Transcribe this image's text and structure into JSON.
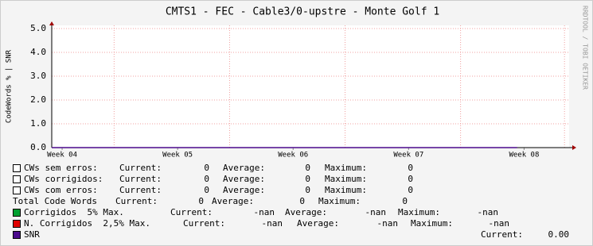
{
  "chart_data": {
    "type": "line",
    "title": "CMTS1 - FEC - Cable3/0-upstre - Monte Golf 1",
    "y_label": "CodeWords % | SNR",
    "side_text": "RRDTOOL / TOBI OETIKER",
    "xlim": [
      3.91,
      8.39
    ],
    "xticks": [
      {
        "value": 4,
        "label": "Week 04"
      },
      {
        "value": 5,
        "label": "Week 05"
      },
      {
        "value": 6,
        "label": "Week 06"
      },
      {
        "value": 7,
        "label": "Week 07"
      },
      {
        "value": 8,
        "label": "Week 08"
      }
    ],
    "xgrid": [
      4.45,
      5.45,
      6.45,
      7.45,
      8.35
    ],
    "ylim": [
      0,
      5
    ],
    "yticks": [
      {
        "value": 0,
        "label": "0.0"
      },
      {
        "value": 1,
        "label": "1.0"
      },
      {
        "value": 2,
        "label": "2.0"
      },
      {
        "value": 3,
        "label": "3.0"
      },
      {
        "value": 4,
        "label": "4.0"
      },
      {
        "value": 5,
        "label": "5.0"
      }
    ],
    "grid": true,
    "series": [
      {
        "name": "SNR",
        "color": "#4b0a8c",
        "x": [
          3.91,
          7.94
        ],
        "values": [
          0,
          0
        ]
      }
    ],
    "legend": [
      {
        "label": "CWs sem erros:",
        "color": "#ffffff",
        "stats": [
          [
            "Current:",
            "0"
          ],
          [
            "Average:",
            "0"
          ],
          [
            "Maximum:",
            "0"
          ]
        ]
      },
      {
        "label": "CWs corrigidos:",
        "color": "#ffffff",
        "stats": [
          [
            "Current:",
            "0"
          ],
          [
            "Average:",
            "0"
          ],
          [
            "Maximum:",
            "0"
          ]
        ]
      },
      {
        "label": "CWs com erros:",
        "color": "#ffffff",
        "stats": [
          [
            "Current:",
            "0"
          ],
          [
            "Average:",
            "0"
          ],
          [
            "Maximum:",
            "0"
          ]
        ]
      },
      {
        "label": "Total Code Words",
        "stats": [
          [
            "Current:",
            "0"
          ],
          [
            "Average:",
            "0"
          ],
          [
            "Maximum:",
            "0"
          ]
        ]
      },
      {
        "label": "Corrigidos  5% Max.",
        "color": "#00a030",
        "stats": [
          [
            "Current:",
            "-nan"
          ],
          [
            "Average:",
            "-nan"
          ],
          [
            "Maximum:",
            "-nan"
          ]
        ]
      },
      {
        "label": "N. Corrigidos  2,5% Max.",
        "color": "#e00000",
        "stats": [
          [
            "Current:",
            "-nan"
          ],
          [
            "Average:",
            "-nan"
          ],
          [
            "Maximum:",
            "-nan"
          ]
        ]
      },
      {
        "label": "SNR",
        "color": "#4b0a8c",
        "stats": [
          [
            "Current:",
            "0.00"
          ]
        ]
      }
    ]
  }
}
